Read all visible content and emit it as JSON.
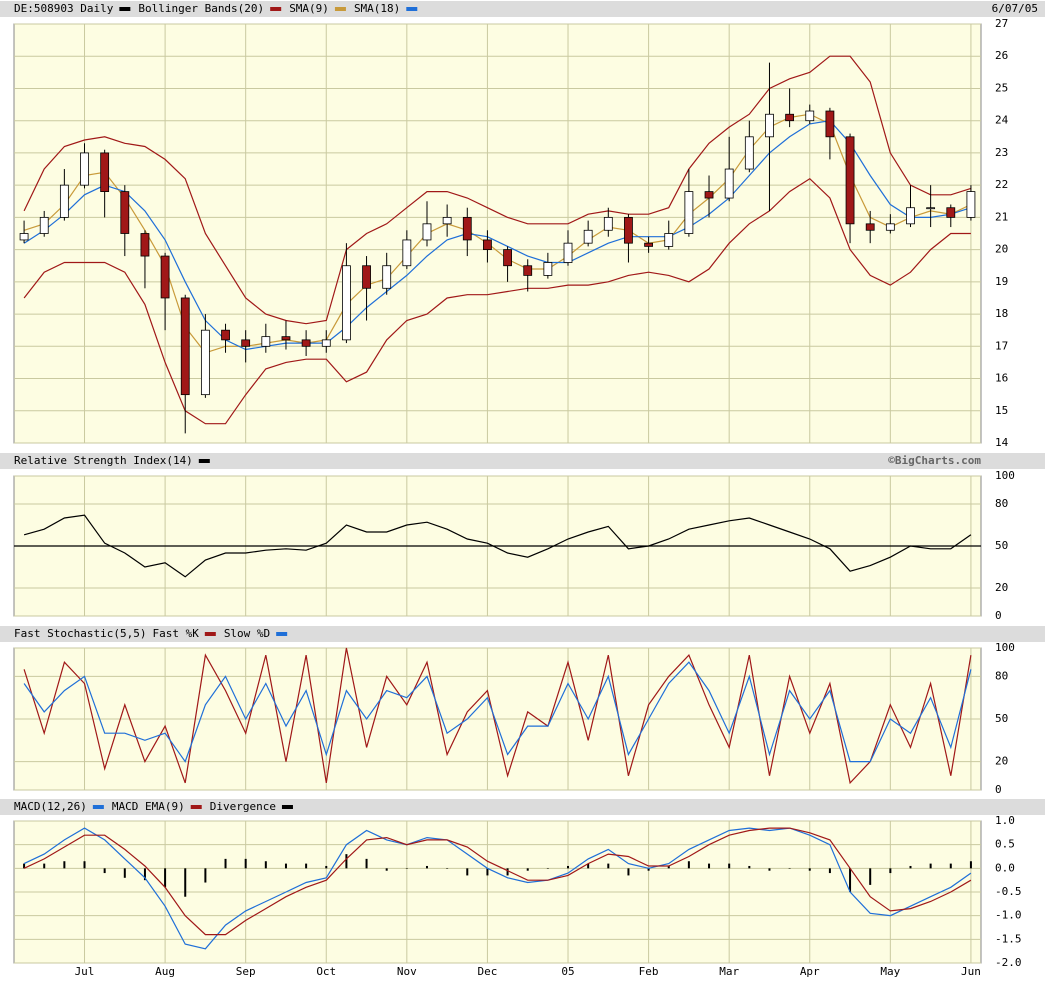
{
  "chart_data": [
    {
      "type": "candlestick",
      "date": "6/07/05",
      "ylim": [
        14,
        27
      ],
      "yticks": [
        14,
        15,
        16,
        17,
        18,
        19,
        20,
        21,
        22,
        23,
        24,
        25,
        26,
        27
      ],
      "grid": true,
      "up_color": "#ffffff",
      "down_color": "#a01818",
      "series": [
        {
          "name": "DE:508903 Daily",
          "color": "#000000",
          "open": [
            20.3,
            20.5,
            21,
            22,
            23,
            21.8,
            20.5,
            19.8,
            18.5,
            15.5,
            17.5,
            17.2,
            17,
            17.3,
            17.2,
            17,
            17.2,
            19.5,
            18.8,
            19.5,
            20.3,
            20.8,
            21,
            20.3,
            20,
            19.5,
            19.2,
            19.6,
            20.2,
            20.6,
            21,
            20.2,
            20.1,
            20.5,
            21.8,
            21.6,
            22.5,
            23.5,
            24.2,
            24,
            24.3,
            23.5,
            20.8,
            20.6,
            20.8,
            21.3,
            21.3,
            21
          ],
          "high": [
            20.9,
            21.2,
            22.5,
            23.3,
            23.1,
            22,
            20.6,
            19.9,
            18.6,
            18,
            17.7,
            17.5,
            17.7,
            17.8,
            17.5,
            17.5,
            20.2,
            19.8,
            19.9,
            20.6,
            21.5,
            21.4,
            21.3,
            20.6,
            20.1,
            19.7,
            19.9,
            20.6,
            20.9,
            21.3,
            21.1,
            20.4,
            20.9,
            22.5,
            22.3,
            23.5,
            24,
            25.8,
            25,
            24.5,
            24.4,
            23.6,
            21.2,
            21.1,
            22,
            22,
            21.4,
            22
          ],
          "low": [
            20.2,
            20.4,
            20.9,
            21.9,
            21,
            19.8,
            18.8,
            17.5,
            14.3,
            15.4,
            16.8,
            16.5,
            16.8,
            16.9,
            16.7,
            16.8,
            17.1,
            17.8,
            18.6,
            19.4,
            20.1,
            20.4,
            19.8,
            19.6,
            19,
            18.7,
            19.1,
            19.5,
            20.1,
            20.4,
            19.6,
            19.9,
            20,
            20.4,
            21,
            21.5,
            22.4,
            21.2,
            23.8,
            23.9,
            22.8,
            20.2,
            20.2,
            20.5,
            20.7,
            20.7,
            20.7,
            20.9
          ],
          "close": [
            20.5,
            21,
            22,
            23,
            21.8,
            20.5,
            19.8,
            18.5,
            15.5,
            17.5,
            17.2,
            17,
            17.3,
            17.2,
            17,
            17.2,
            19.5,
            18.8,
            19.5,
            20.3,
            20.8,
            21,
            20.3,
            20,
            19.5,
            19.2,
            19.6,
            20.2,
            20.6,
            21,
            20.2,
            20.1,
            20.5,
            21.8,
            21.6,
            22.5,
            23.5,
            24.2,
            24,
            24.3,
            23.5,
            20.8,
            20.6,
            20.8,
            21.3,
            21.3,
            21,
            21.8
          ]
        },
        {
          "name": "Bollinger Bands(20)",
          "color": "#a01818",
          "upper": [
            21.2,
            22.5,
            23.2,
            23.4,
            23.5,
            23.3,
            23.2,
            22.8,
            22.2,
            20.5,
            19.5,
            18.5,
            18,
            17.8,
            17.7,
            17.8,
            20,
            20.5,
            20.8,
            21.3,
            21.8,
            21.8,
            21.6,
            21.3,
            21,
            20.8,
            20.8,
            20.8,
            21.1,
            21.2,
            21.1,
            21.1,
            21.3,
            22.5,
            23.3,
            23.8,
            24.2,
            25,
            25.3,
            25.5,
            26,
            26,
            25.2,
            23,
            22,
            21.7,
            21.7,
            21.9
          ],
          "lower": [
            18.5,
            19.3,
            19.6,
            19.6,
            19.6,
            19.3,
            18.3,
            16.5,
            15,
            14.6,
            14.6,
            15.5,
            16.3,
            16.5,
            16.6,
            16.6,
            15.9,
            16.2,
            17.2,
            17.8,
            18,
            18.5,
            18.6,
            18.6,
            18.7,
            18.8,
            18.8,
            18.9,
            18.9,
            19,
            19.2,
            19.3,
            19.2,
            19,
            19.4,
            20.2,
            20.8,
            21.2,
            21.8,
            22.2,
            21.6,
            20,
            19.2,
            18.9,
            19.3,
            20,
            20.5,
            20.5
          ]
        },
        {
          "name": "SMA(9)",
          "color": "#c89a3a",
          "values": [
            20.6,
            20.8,
            21.4,
            22.3,
            22.4,
            21.6,
            20.6,
            19.5,
            17.6,
            16.8,
            17,
            17,
            17.1,
            17.2,
            17.1,
            17.2,
            18.3,
            18.9,
            19.1,
            19.8,
            20.5,
            20.8,
            20.6,
            20.2,
            19.7,
            19.4,
            19.4,
            19.8,
            20.3,
            20.7,
            20.6,
            20.2,
            20.3,
            21.1,
            21.6,
            22.2,
            23.1,
            23.8,
            24.1,
            24.2,
            23.9,
            22.3,
            21,
            20.7,
            21,
            21.2,
            21.1,
            21.4
          ]
        },
        {
          "name": "SMA(18)",
          "color": "#1f6fd8",
          "values": [
            20.2,
            20.6,
            21.1,
            21.7,
            22,
            21.8,
            21.2,
            20.3,
            19,
            17.8,
            17.2,
            16.9,
            17,
            17.1,
            17.1,
            17.1,
            17.6,
            18.2,
            18.7,
            19.2,
            19.8,
            20.3,
            20.5,
            20.4,
            20.1,
            19.8,
            19.6,
            19.6,
            19.9,
            20.2,
            20.4,
            20.4,
            20.4,
            20.7,
            21.1,
            21.6,
            22.3,
            23,
            23.5,
            23.9,
            24,
            23.3,
            22.3,
            21.4,
            21,
            21,
            21.1,
            21.3
          ]
        }
      ]
    },
    {
      "type": "line",
      "credit": "©BigCharts.com",
      "ylim": [
        0,
        100
      ],
      "yticks": [
        0,
        20,
        50,
        80,
        100
      ],
      "grid": true,
      "reference_line": 50,
      "series": [
        {
          "name": "Relative Strength Index(14)",
          "color": "#000000",
          "values": [
            58,
            62,
            70,
            72,
            52,
            45,
            35,
            38,
            28,
            40,
            45,
            45,
            47,
            48,
            47,
            52,
            65,
            60,
            60,
            65,
            67,
            62,
            55,
            52,
            45,
            42,
            48,
            55,
            60,
            64,
            48,
            50,
            55,
            62,
            65,
            68,
            70,
            65,
            60,
            55,
            48,
            32,
            36,
            42,
            50,
            48,
            48,
            58
          ]
        }
      ]
    },
    {
      "type": "line",
      "title": "Fast Stochastic(5,5)",
      "ylim": [
        0,
        100
      ],
      "yticks": [
        0,
        20,
        50,
        80,
        100
      ],
      "grid": true,
      "series": [
        {
          "name": "Fast %K",
          "color": "#a01818",
          "values": [
            85,
            40,
            90,
            75,
            15,
            60,
            20,
            45,
            5,
            95,
            70,
            40,
            95,
            20,
            95,
            5,
            100,
            30,
            80,
            60,
            90,
            25,
            55,
            70,
            10,
            55,
            45,
            90,
            35,
            95,
            10,
            60,
            80,
            95,
            60,
            30,
            95,
            10,
            80,
            40,
            75,
            5,
            20,
            60,
            30,
            75,
            10,
            95
          ]
        },
        {
          "name": "Slow %D",
          "color": "#1f6fd8",
          "values": [
            75,
            55,
            70,
            80,
            40,
            40,
            35,
            40,
            20,
            60,
            80,
            50,
            75,
            45,
            70,
            25,
            70,
            50,
            70,
            65,
            80,
            40,
            50,
            65,
            25,
            45,
            45,
            75,
            50,
            80,
            25,
            50,
            75,
            90,
            70,
            40,
            80,
            25,
            70,
            50,
            70,
            20,
            20,
            50,
            40,
            65,
            30,
            85
          ]
        }
      ]
    },
    {
      "type": "line",
      "ylim": [
        -2,
        1
      ],
      "yticks": [
        {
          "value": -2,
          "label": "-2.0"
        },
        {
          "value": -1.5,
          "label": "-1.5"
        },
        {
          "value": -1,
          "label": "-1.0"
        },
        {
          "value": -0.5,
          "label": "-0.5"
        },
        {
          "value": 0,
          "label": "0.0"
        },
        {
          "value": 0.5,
          "label": "0.5"
        },
        {
          "value": 1,
          "label": "1.0"
        }
      ],
      "grid": true,
      "categories": [
        null,
        null,
        null,
        "Jul",
        null,
        null,
        null,
        "Aug",
        null,
        null,
        null,
        "Sep",
        null,
        null,
        null,
        "Oct",
        null,
        null,
        null,
        "Nov",
        null,
        null,
        null,
        "Dec",
        null,
        null,
        null,
        "05",
        null,
        null,
        null,
        "Feb",
        null,
        null,
        null,
        "Mar",
        null,
        null,
        null,
        "Apr",
        null,
        null,
        null,
        "May",
        null,
        null,
        null,
        "Jun"
      ],
      "series": [
        {
          "name": "MACD(12,26)",
          "color": "#1f6fd8",
          "values": [
            0.1,
            0.3,
            0.6,
            0.85,
            0.6,
            0.2,
            -0.2,
            -0.8,
            -1.6,
            -1.7,
            -1.2,
            -0.9,
            -0.7,
            -0.5,
            -0.3,
            -0.2,
            0.5,
            0.8,
            0.6,
            0.5,
            0.65,
            0.6,
            0.3,
            0,
            -0.2,
            -0.3,
            -0.25,
            -0.1,
            0.2,
            0.4,
            0.1,
            0,
            0.1,
            0.4,
            0.6,
            0.8,
            0.85,
            0.8,
            0.85,
            0.7,
            0.5,
            -0.5,
            -0.95,
            -1,
            -0.8,
            -0.6,
            -0.4,
            -0.1
          ]
        },
        {
          "name": "MACD EMA(9)",
          "color": "#a01818",
          "values": [
            0,
            0.2,
            0.45,
            0.7,
            0.7,
            0.4,
            0.05,
            -0.4,
            -1,
            -1.4,
            -1.4,
            -1.1,
            -0.85,
            -0.6,
            -0.4,
            -0.25,
            0.2,
            0.6,
            0.65,
            0.5,
            0.6,
            0.6,
            0.45,
            0.15,
            -0.05,
            -0.25,
            -0.25,
            -0.15,
            0.1,
            0.3,
            0.25,
            0.05,
            0.05,
            0.25,
            0.5,
            0.7,
            0.8,
            0.85,
            0.85,
            0.75,
            0.6,
            0,
            -0.6,
            -0.9,
            -0.85,
            -0.7,
            -0.5,
            -0.25
          ]
        },
        {
          "name": "Divergence",
          "color": "#000000",
          "type": "bar",
          "values": [
            0.1,
            0.1,
            0.15,
            0.15,
            -0.1,
            -0.2,
            -0.25,
            -0.4,
            -0.6,
            -0.3,
            0.2,
            0.2,
            0.15,
            0.1,
            0.1,
            0.05,
            0.3,
            0.2,
            -0.05,
            0,
            0.05,
            0,
            -0.15,
            -0.15,
            -0.15,
            -0.05,
            0,
            0.05,
            0.1,
            0.1,
            -0.15,
            -0.05,
            0.05,
            0.15,
            0.1,
            0.1,
            0.05,
            -0.05,
            0,
            -0.05,
            -0.1,
            -0.5,
            -0.35,
            -0.1,
            0.05,
            0.1,
            0.1,
            0.15
          ]
        }
      ]
    }
  ]
}
